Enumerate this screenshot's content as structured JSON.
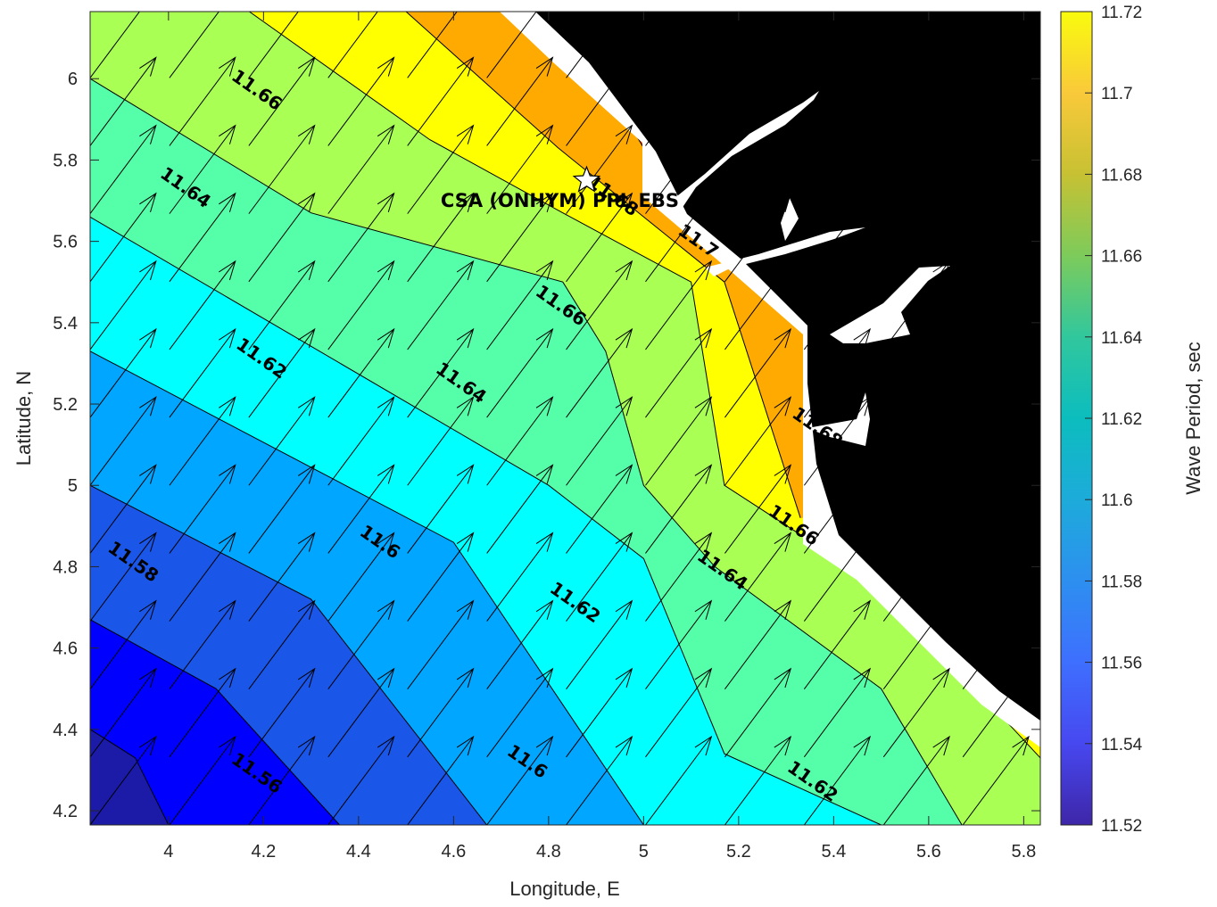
{
  "chart_data": {
    "type": "contour",
    "title": "",
    "xlabel": "Longitude, E",
    "ylabel": "Latitude, N",
    "xlim": [
      3.835,
      5.835
    ],
    "ylim": [
      4.165,
      6.165
    ],
    "xticks": [
      "4",
      "4.2",
      "4.4",
      "4.6",
      "4.8",
      "5",
      "5.2",
      "5.4",
      "5.6",
      "5.8"
    ],
    "yticks": [
      "4.2",
      "4.4",
      "4.6",
      "4.8",
      "5",
      "5.2",
      "5.4",
      "5.6",
      "5.8",
      "6"
    ],
    "colorbar": {
      "label": "Wave Period, sec",
      "range": [
        11.52,
        11.72
      ],
      "ticks": [
        "11.52",
        "11.54",
        "11.56",
        "11.58",
        "11.6",
        "11.62",
        "11.64",
        "11.66",
        "11.68",
        "11.7",
        "11.72"
      ],
      "colormap": "parula"
    },
    "contour_levels": [
      11.54,
      11.56,
      11.58,
      11.6,
      11.62,
      11.64,
      11.66,
      11.68,
      11.7
    ],
    "contour_labels": [
      {
        "text": "11.56",
        "lon": 4.13,
        "lat": 4.32
      },
      {
        "text": "11.58",
        "lon": 3.87,
        "lat": 4.84
      },
      {
        "text": "11.6",
        "lon": 4.4,
        "lat": 4.88
      },
      {
        "text": "11.6",
        "lon": 4.71,
        "lat": 4.34
      },
      {
        "text": "11.62",
        "lon": 4.14,
        "lat": 5.34
      },
      {
        "text": "11.62",
        "lon": 4.8,
        "lat": 4.74
      },
      {
        "text": "11.62",
        "lon": 5.3,
        "lat": 4.3
      },
      {
        "text": "11.64",
        "lon": 3.98,
        "lat": 5.76
      },
      {
        "text": "11.64",
        "lon": 4.56,
        "lat": 5.28
      },
      {
        "text": "11.64",
        "lon": 5.11,
        "lat": 4.82
      },
      {
        "text": "11.66",
        "lon": 4.13,
        "lat": 6.0
      },
      {
        "text": "11.66",
        "lon": 4.77,
        "lat": 5.47
      },
      {
        "text": "11.66",
        "lon": 5.26,
        "lat": 4.93
      },
      {
        "text": "11.68",
        "lon": 4.88,
        "lat": 5.74
      },
      {
        "text": "11.68",
        "lon": 5.31,
        "lat": 5.17
      },
      {
        "text": "11.7",
        "lon": 5.07,
        "lat": 5.62
      }
    ],
    "site": {
      "name": "CSA (ONHYM) PPL EBS",
      "lon": 4.88,
      "lat": 5.75
    },
    "arrows": {
      "direction": "north-east",
      "spacing_deg": 0.167
    }
  }
}
